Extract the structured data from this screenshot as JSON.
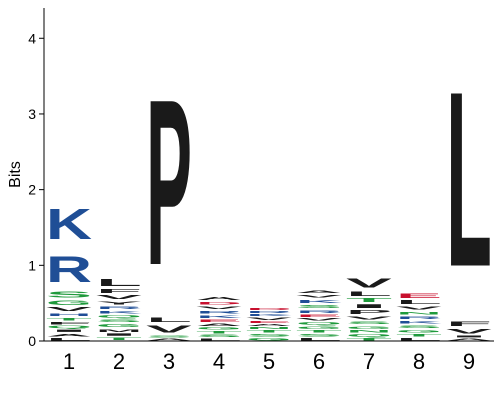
{
  "chart_data": {
    "type": "sequence-logo",
    "title": "",
    "xlabel": "",
    "ylabel": "Bits",
    "ylim": [
      0,
      4.4
    ],
    "yticks": [
      0,
      1,
      2,
      3,
      4
    ],
    "ytick_labels": [
      "0",
      "1",
      "2",
      "3",
      "4"
    ],
    "positions": [
      "1",
      "2",
      "3",
      "4",
      "5",
      "6",
      "7",
      "8",
      "9"
    ],
    "colors": {
      "basic": "#1f4e96",
      "polar": "#1f9a3c",
      "hydrophobic": "#1a1a1a",
      "acidic": "#c8102e",
      "neutral": "#9b3fa5"
    },
    "stacks": [
      [
        {
          "letter": "L",
          "bits": 0.05,
          "class": "hydrophobic"
        },
        {
          "letter": "A",
          "bits": 0.06,
          "class": "hydrophobic"
        },
        {
          "letter": "I",
          "bits": 0.05,
          "class": "hydrophobic"
        },
        {
          "letter": "Q",
          "bits": 0.05,
          "class": "polar"
        },
        {
          "letter": "F",
          "bits": 0.05,
          "class": "hydrophobic"
        },
        {
          "letter": "T",
          "bits": 0.06,
          "class": "polar"
        },
        {
          "letter": "H",
          "bits": 0.06,
          "class": "basic"
        },
        {
          "letter": "V",
          "bits": 0.08,
          "class": "hydrophobic"
        },
        {
          "letter": "G",
          "bits": 0.09,
          "class": "polar"
        },
        {
          "letter": "S",
          "bits": 0.12,
          "class": "polar"
        },
        {
          "letter": "R",
          "bits": 0.55,
          "class": "basic"
        },
        {
          "letter": "K",
          "bits": 0.65,
          "class": "basic"
        }
      ],
      [
        {
          "letter": "T",
          "bits": 0.06,
          "class": "polar"
        },
        {
          "letter": "I",
          "bits": 0.05,
          "class": "hydrophobic"
        },
        {
          "letter": "M",
          "bits": 0.06,
          "class": "hydrophobic"
        },
        {
          "letter": "G",
          "bits": 0.07,
          "class": "polar"
        },
        {
          "letter": "S",
          "bits": 0.06,
          "class": "polar"
        },
        {
          "letter": "Q",
          "bits": 0.05,
          "class": "polar"
        },
        {
          "letter": "K",
          "bits": 0.06,
          "class": "basic"
        },
        {
          "letter": "R",
          "bits": 0.06,
          "class": "basic"
        },
        {
          "letter": "Y",
          "bits": 0.07,
          "class": "hydrophobic"
        },
        {
          "letter": "V",
          "bits": 0.08,
          "class": "hydrophobic"
        },
        {
          "letter": "F",
          "bits": 0.08,
          "class": "hydrophobic"
        },
        {
          "letter": "L",
          "bits": 0.15,
          "class": "hydrophobic"
        }
      ],
      [
        {
          "letter": "A",
          "bits": 0.04,
          "class": "hydrophobic"
        },
        {
          "letter": "S",
          "bits": 0.04,
          "class": "polar"
        },
        {
          "letter": "V",
          "bits": 0.15,
          "class": "hydrophobic"
        },
        {
          "letter": "L",
          "bits": 0.1,
          "class": "hydrophobic"
        },
        {
          "letter": "P",
          "bits": 3.5,
          "class": "hydrophobic"
        }
      ],
      [
        {
          "letter": "L",
          "bits": 0.04,
          "class": "hydrophobic"
        },
        {
          "letter": "S",
          "bits": 0.05,
          "class": "polar"
        },
        {
          "letter": "T",
          "bits": 0.05,
          "class": "polar"
        },
        {
          "letter": "G",
          "bits": 0.05,
          "class": "polar"
        },
        {
          "letter": "A",
          "bits": 0.05,
          "class": "hydrophobic"
        },
        {
          "letter": "E",
          "bits": 0.05,
          "class": "acidic"
        },
        {
          "letter": "K",
          "bits": 0.06,
          "class": "basic"
        },
        {
          "letter": "R",
          "bits": 0.06,
          "class": "basic"
        },
        {
          "letter": "V",
          "bits": 0.06,
          "class": "hydrophobic"
        },
        {
          "letter": "D",
          "bits": 0.06,
          "class": "acidic"
        },
        {
          "letter": "A",
          "bits": 0.07,
          "class": "hydrophobic"
        }
      ],
      [
        {
          "letter": "G",
          "bits": 0.05,
          "class": "polar"
        },
        {
          "letter": "S",
          "bits": 0.05,
          "class": "polar"
        },
        {
          "letter": "T",
          "bits": 0.05,
          "class": "polar"
        },
        {
          "letter": "N",
          "bits": 0.04,
          "class": "polar"
        },
        {
          "letter": "A",
          "bits": 0.04,
          "class": "hydrophobic"
        },
        {
          "letter": "E",
          "bits": 0.04,
          "class": "acidic"
        },
        {
          "letter": "V",
          "bits": 0.05,
          "class": "hydrophobic"
        },
        {
          "letter": "K",
          "bits": 0.04,
          "class": "basic"
        },
        {
          "letter": "R",
          "bits": 0.04,
          "class": "basic"
        },
        {
          "letter": "D",
          "bits": 0.04,
          "class": "acidic"
        }
      ],
      [
        {
          "letter": "L",
          "bits": 0.05,
          "class": "hydrophobic"
        },
        {
          "letter": "S",
          "bits": 0.05,
          "class": "polar"
        },
        {
          "letter": "T",
          "bits": 0.05,
          "class": "polar"
        },
        {
          "letter": "G",
          "bits": 0.06,
          "class": "polar"
        },
        {
          "letter": "Q",
          "bits": 0.05,
          "class": "polar"
        },
        {
          "letter": "V",
          "bits": 0.05,
          "class": "hydrophobic"
        },
        {
          "letter": "E",
          "bits": 0.05,
          "class": "acidic"
        },
        {
          "letter": "R",
          "bits": 0.06,
          "class": "basic"
        },
        {
          "letter": "S",
          "bits": 0.07,
          "class": "polar"
        },
        {
          "letter": "K",
          "bits": 0.07,
          "class": "basic"
        },
        {
          "letter": "V",
          "bits": 0.06,
          "class": "hydrophobic"
        },
        {
          "letter": "A",
          "bits": 0.06,
          "class": "hydrophobic"
        }
      ],
      [
        {
          "letter": "T",
          "bits": 0.05,
          "class": "polar"
        },
        {
          "letter": "Q",
          "bits": 0.05,
          "class": "polar"
        },
        {
          "letter": "N",
          "bits": 0.05,
          "class": "polar"
        },
        {
          "letter": "G",
          "bits": 0.06,
          "class": "polar"
        },
        {
          "letter": "S",
          "bits": 0.06,
          "class": "polar"
        },
        {
          "letter": "V",
          "bits": 0.07,
          "class": "hydrophobic"
        },
        {
          "letter": "P",
          "bits": 0.08,
          "class": "hydrophobic"
        },
        {
          "letter": "I",
          "bits": 0.08,
          "class": "hydrophobic"
        },
        {
          "letter": "T",
          "bits": 0.08,
          "class": "polar"
        },
        {
          "letter": "L",
          "bits": 0.09,
          "class": "hydrophobic"
        },
        {
          "letter": "V",
          "bits": 0.19,
          "class": "hydrophobic"
        }
      ],
      [
        {
          "letter": "L",
          "bits": 0.05,
          "class": "hydrophobic"
        },
        {
          "letter": "T",
          "bits": 0.05,
          "class": "polar"
        },
        {
          "letter": "G",
          "bits": 0.06,
          "class": "polar"
        },
        {
          "letter": "S",
          "bits": 0.06,
          "class": "polar"
        },
        {
          "letter": "K",
          "bits": 0.06,
          "class": "basic"
        },
        {
          "letter": "R",
          "bits": 0.06,
          "class": "basic"
        },
        {
          "letter": "N",
          "bits": 0.06,
          "class": "polar"
        },
        {
          "letter": "V",
          "bits": 0.07,
          "class": "hydrophobic"
        },
        {
          "letter": "L",
          "bits": 0.08,
          "class": "hydrophobic"
        },
        {
          "letter": "E",
          "bits": 0.1,
          "class": "acidic"
        }
      ],
      [
        {
          "letter": "A",
          "bits": 0.04,
          "class": "hydrophobic"
        },
        {
          "letter": "I",
          "bits": 0.04,
          "class": "hydrophobic"
        },
        {
          "letter": "V",
          "bits": 0.1,
          "class": "hydrophobic"
        },
        {
          "letter": "F",
          "bits": 0.09,
          "class": "hydrophobic"
        },
        {
          "letter": "L",
          "bits": 3.7,
          "class": "hydrophobic"
        }
      ]
    ]
  }
}
